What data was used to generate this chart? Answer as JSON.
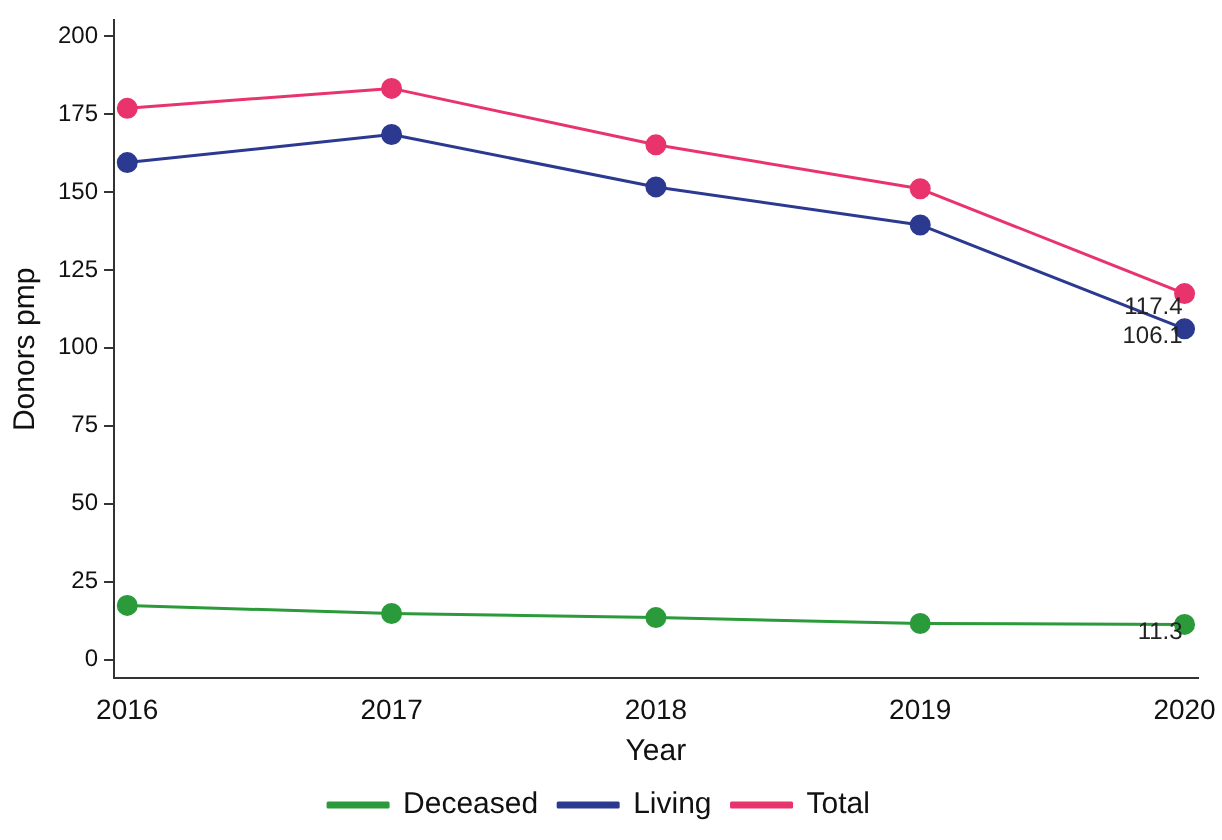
{
  "chart_data": {
    "type": "line",
    "xlabel": "Year",
    "ylabel": "Donors pmp",
    "x": [
      2016,
      2017,
      2018,
      2019,
      2020
    ],
    "series": [
      {
        "name": "Deceased",
        "color": "#2a9a3a",
        "values": [
          17.4,
          14.8,
          13.5,
          11.6,
          11.3
        ],
        "value_labels": [
          null,
          null,
          null,
          null,
          "11.3"
        ]
      },
      {
        "name": "Living",
        "color": "#2b3990",
        "values": [
          159.4,
          168.4,
          151.6,
          139.4,
          106.1
        ],
        "value_labels": [
          null,
          null,
          null,
          null,
          "106.1"
        ]
      },
      {
        "name": "Total",
        "color": "#e8336d",
        "values": [
          176.8,
          183.2,
          165.1,
          151.0,
          117.4
        ],
        "value_labels": [
          null,
          null,
          null,
          null,
          "117.4"
        ]
      }
    ],
    "xlim": [
      2015.95,
      2020.05
    ],
    "xticks": [
      2016,
      2017,
      2018,
      2019,
      2020
    ],
    "ylim": [
      -6,
      205
    ],
    "yticks": [
      0,
      25,
      50,
      75,
      100,
      125,
      150,
      175,
      200
    ],
    "grid": false,
    "legend": "bottom",
    "marker": "circle",
    "line_style": "solid"
  }
}
